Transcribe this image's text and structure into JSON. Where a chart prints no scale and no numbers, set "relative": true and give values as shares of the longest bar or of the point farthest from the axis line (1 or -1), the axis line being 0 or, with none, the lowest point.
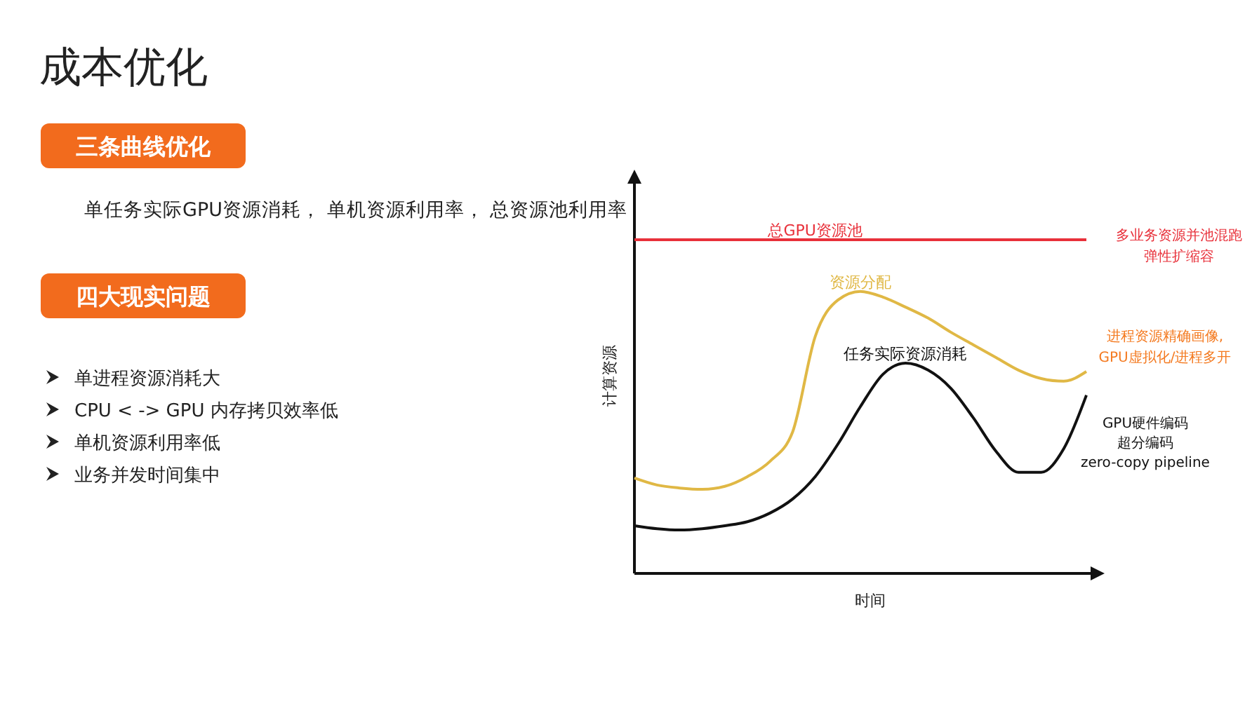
{
  "chart_data": {
    "type": "line",
    "relative": true,
    "title": "成本优化",
    "xlabel": "时间",
    "ylabel": "计算资源",
    "legend": false,
    "marker": "none",
    "line_style": "solid",
    "categories": [
      null,
      null,
      null,
      null,
      null,
      null,
      null,
      null,
      null,
      null,
      null,
      null,
      null,
      null,
      null,
      null,
      null,
      null,
      null,
      null,
      null
    ],
    "series": [
      {
        "name": "总GPU资源池",
        "color": "#e8303a",
        "values": [
          1,
          1,
          1,
          1,
          1,
          1,
          1,
          1,
          1,
          1,
          1,
          1,
          1,
          1,
          1,
          1,
          1,
          1,
          1,
          1,
          1
        ]
      },
      {
        "name": "资源分配",
        "color": "#e0b845",
        "values": [
          0.286,
          0.265,
          0.256,
          0.252,
          0.261,
          0.29,
          0.336,
          0.424,
          0.71,
          0.819,
          0.845,
          0.828,
          0.798,
          0.765,
          0.723,
          0.685,
          0.647,
          0.609,
          0.584,
          0.576,
          0.605
        ]
      },
      {
        "name": "任务实际资源消耗",
        "color": "#111111",
        "values": [
          0.143,
          0.134,
          0.13,
          0.134,
          0.143,
          0.155,
          0.181,
          0.223,
          0.29,
          0.387,
          0.5,
          0.597,
          0.63,
          0.609,
          0.555,
          0.466,
          0.366,
          0.303,
          0.303,
          0.374,
          0.534
        ]
      }
    ],
    "annotations": [
      "三条曲线优化",
      "单任务实际GPU资源消耗， 单机资源利用率， 总资源池利用率",
      "四大现实问题",
      "单进程资源消耗大",
      "CPU < -> GPU 内存拷贝效率低",
      "单机资源利用率低",
      "业务并发时间集中",
      "多业务资源并池混跑",
      "弹性扩缩容",
      "进程资源精确画像,",
      "GPU虚拟化/进程多开",
      "GPU硬件编码",
      "超分编码",
      "zero-copy pipeline"
    ]
  }
}
